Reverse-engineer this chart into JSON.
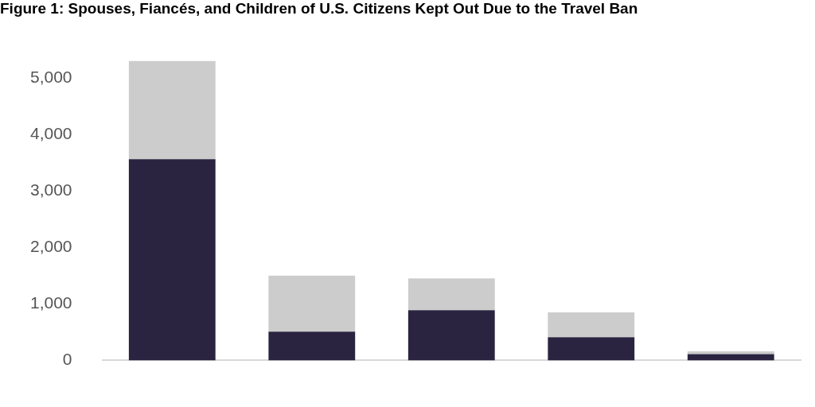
{
  "chart_data": {
    "type": "bar",
    "title": "Figure 1: Spouses, Fiancés, and Children of U.S. Citizens Kept Out Due to the Travel Ban",
    "categories": [
      null,
      null,
      null,
      null,
      null
    ],
    "stacked": true,
    "series": [
      {
        "color": "#2a2440",
        "values": [
          3560,
          510,
          890,
          410,
          110
        ]
      },
      {
        "color": "#cccccc",
        "values": [
          1740,
          990,
          560,
          440,
          50
        ]
      }
    ],
    "ylim": [
      0,
      5300
    ],
    "yticks": [
      {
        "value": 0,
        "label": "0"
      },
      {
        "value": 1000,
        "label": "1,000"
      },
      {
        "value": 2000,
        "label": "2,000"
      },
      {
        "value": 3000,
        "label": "3,000"
      },
      {
        "value": 4000,
        "label": "4,000"
      },
      {
        "value": 5000,
        "label": "5,000"
      }
    ],
    "grid": false,
    "legend": false,
    "tick_labels": "y"
  }
}
